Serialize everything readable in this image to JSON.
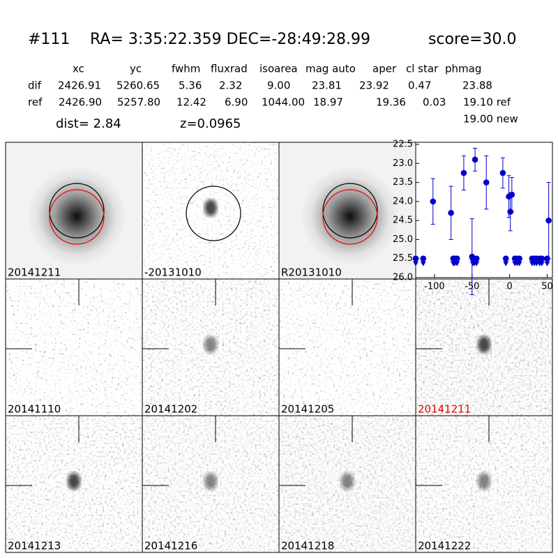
{
  "header": {
    "id": "#111",
    "coords": "RA= 3:35:22.359 DEC=-28:49:28.99",
    "score": "score=30.0"
  },
  "table": {
    "columns": [
      "xc",
      "yc",
      "fwhm",
      "fluxrad",
      "isoarea",
      "mag auto",
      "aper",
      "cl star",
      "phmag"
    ],
    "rows": [
      [
        "dif",
        "2426.91",
        "5260.65",
        "5.36",
        "2.32",
        "9.00",
        "23.81",
        "23.92",
        "0.47",
        "23.88"
      ],
      [
        "ref",
        "2426.90",
        "5257.80",
        "12.42",
        "6.90",
        "1044.00",
        "18.97",
        "19.36",
        "0.03",
        "19.10 ref"
      ]
    ],
    "extra": "19.00 new",
    "dist": "dist=  2.84",
    "z": "z=0.0965"
  },
  "stamps": [
    "20141211",
    "-20131010",
    "R20131010",
    "20141110",
    "20141202",
    "20141205",
    "20141211",
    "20141213",
    "20141216",
    "20141218",
    "20141222"
  ],
  "chart_data": {
    "type": "scatter",
    "color": "#0000cc",
    "y_inverted": true,
    "x": [
      -102,
      -78,
      -61,
      -50,
      -46,
      -31,
      -9,
      -1,
      1,
      3,
      52
    ],
    "values": [
      24.0,
      24.3,
      23.25,
      25.45,
      22.9,
      23.5,
      23.25,
      23.87,
      24.27,
      23.82,
      24.5
    ],
    "errors": [
      0.6,
      0.7,
      0.45,
      1.0,
      0.3,
      0.7,
      0.4,
      0.55,
      0.5,
      0.45,
      1.0
    ],
    "limit_x": [
      -125,
      -115,
      -75,
      -73,
      -70,
      -49,
      -47,
      -44,
      -5,
      7,
      10,
      13,
      30,
      33,
      36,
      40,
      43,
      50
    ],
    "limit_values": [
      25.5,
      25.5,
      25.5,
      25.5,
      25.5,
      25.5,
      25.5,
      25.5,
      25.5,
      25.5,
      25.5,
      25.5,
      25.5,
      25.5,
      25.5,
      25.5,
      25.5,
      25.5
    ],
    "xlim": [
      -125,
      57
    ],
    "ylim": [
      22.5,
      26.0
    ],
    "xticks": [
      -100,
      -50,
      0,
      50
    ],
    "yticks": [
      22.5,
      {
        "value": 23.0,
        "label": "23.0"
      },
      23.5,
      {
        "value": 24.0,
        "label": "24.0"
      },
      24.5,
      {
        "value": 25.0,
        "label": "25.0"
      },
      25.5,
      {
        "value": 26.0,
        "label": "26.0"
      }
    ]
  }
}
